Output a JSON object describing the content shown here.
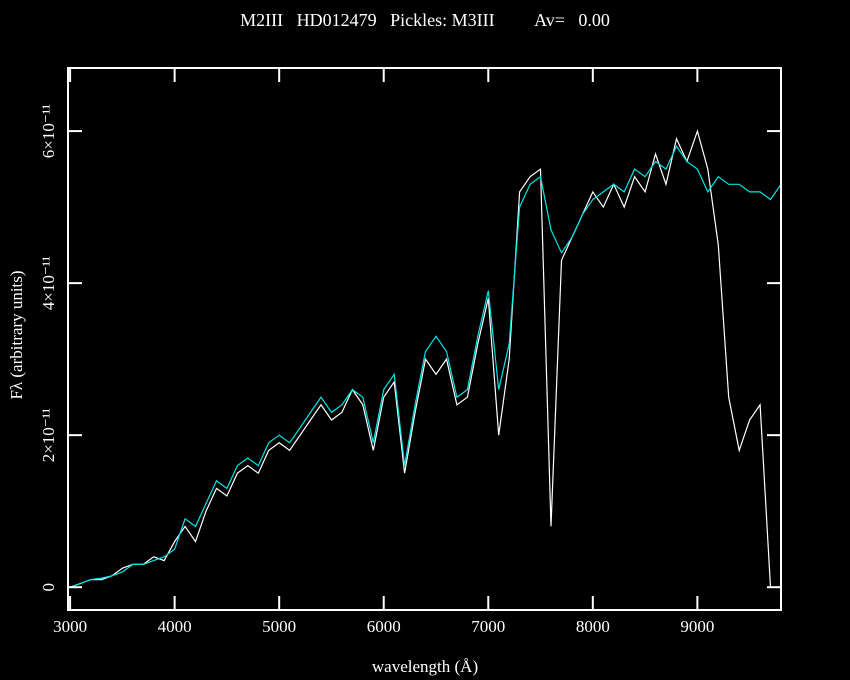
{
  "chart_data": {
    "type": "line",
    "title": "M2III   HD012479   Pickles: M3III         Av=   0.00",
    "x_label": "wavelength (Å)",
    "y_label": "Fλ (arbitrary units)",
    "x": [
      3000,
      3100,
      3200,
      3300,
      3400,
      3500,
      3600,
      3700,
      3800,
      3900,
      4000,
      4100,
      4200,
      4300,
      4400,
      4500,
      4600,
      4700,
      4800,
      4900,
      5000,
      5100,
      5200,
      5300,
      5400,
      5500,
      5600,
      5700,
      5800,
      5900,
      6000,
      6100,
      6200,
      6300,
      6400,
      6500,
      6600,
      6700,
      6800,
      6900,
      7000,
      7100,
      7200,
      7300,
      7400,
      7500,
      7600,
      7700,
      7800,
      7900,
      8000,
      8100,
      8200,
      8300,
      8400,
      8500,
      8600,
      8700,
      8800,
      8900,
      9000,
      9100,
      9200,
      9300,
      9400,
      9500,
      9600,
      9700,
      9800
    ],
    "series": [
      {
        "name": "HD012479",
        "color": "#ffffff",
        "values": [
          0,
          5e-13,
          1e-12,
          1e-12,
          1.5e-12,
          2.5e-12,
          3e-12,
          3e-12,
          4e-12,
          3.5e-12,
          6e-12,
          8e-12,
          6e-12,
          1e-11,
          1.3e-11,
          1.2e-11,
          1.5e-11,
          1.6e-11,
          1.5e-11,
          1.8e-11,
          1.9e-11,
          1.8e-11,
          2e-11,
          2.2e-11,
          2.4e-11,
          2.2e-11,
          2.3e-11,
          2.6e-11,
          2.4e-11,
          1.8e-11,
          2.5e-11,
          2.7e-11,
          1.5e-11,
          2.3e-11,
          3e-11,
          2.8e-11,
          3e-11,
          2.4e-11,
          2.5e-11,
          3.2e-11,
          3.8e-11,
          2e-11,
          3e-11,
          5.2e-11,
          5.4e-11,
          5.5e-11,
          8e-12,
          4.3e-11,
          4.6e-11,
          4.9e-11,
          5.2e-11,
          5e-11,
          5.3e-11,
          5e-11,
          5.4e-11,
          5.2e-11,
          5.7e-11,
          5.3e-11,
          5.9e-11,
          5.6e-11,
          6e-11,
          5.5e-11,
          4.5e-11,
          2.5e-11,
          1.8e-11,
          2.2e-11,
          2.4e-11,
          0,
          0
        ]
      },
      {
        "name": "Pickles: M3III",
        "color": "#00e5e5",
        "values": [
          0,
          5e-13,
          1e-12,
          1.2e-12,
          1.5e-12,
          2e-12,
          3e-12,
          3e-12,
          3.5e-12,
          4e-12,
          5e-12,
          9e-12,
          8e-12,
          1.1e-11,
          1.4e-11,
          1.3e-11,
          1.6e-11,
          1.7e-11,
          1.6e-11,
          1.9e-11,
          2e-11,
          1.9e-11,
          2.1e-11,
          2.3e-11,
          2.5e-11,
          2.3e-11,
          2.4e-11,
          2.6e-11,
          2.5e-11,
          1.9e-11,
          2.6e-11,
          2.8e-11,
          1.6e-11,
          2.4e-11,
          3.1e-11,
          3.3e-11,
          3.1e-11,
          2.5e-11,
          2.6e-11,
          3.3e-11,
          3.9e-11,
          2.6e-11,
          3.2e-11,
          5e-11,
          5.3e-11,
          5.4e-11,
          4.7e-11,
          4.4e-11,
          4.6e-11,
          4.9e-11,
          5.1e-11,
          5.2e-11,
          5.3e-11,
          5.2e-11,
          5.5e-11,
          5.4e-11,
          5.6e-11,
          5.5e-11,
          5.8e-11,
          5.6e-11,
          5.5e-11,
          5.2e-11,
          5.4e-11,
          5.3e-11,
          5.3e-11,
          5.2e-11,
          5.2e-11,
          5.1e-11,
          5.3e-11
        ]
      }
    ],
    "xlim": [
      2980,
      9800
    ],
    "ylim": [
      -3e-12,
      6.83e-11
    ],
    "xticks": [
      3000,
      4000,
      5000,
      6000,
      7000,
      8000,
      9000
    ],
    "yticks": [
      0,
      {
        "value": 2e-11,
        "label": "2×10⁻¹¹"
      },
      {
        "value": 4e-11,
        "label": "4×10⁻¹¹"
      },
      {
        "value": 6e-11,
        "label": "6×10⁻¹¹"
      }
    ],
    "axis_color": "#ffffff"
  }
}
